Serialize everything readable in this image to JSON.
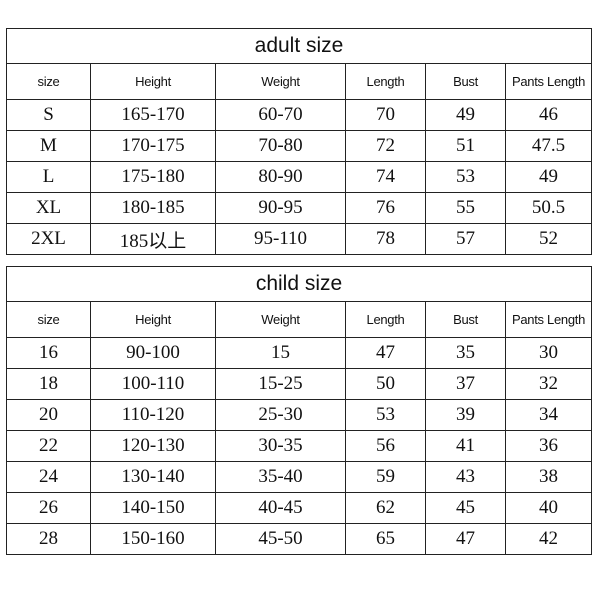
{
  "adult": {
    "title": "adult size",
    "headers": [
      "size",
      "Height",
      "Weight",
      "Length",
      "Bust",
      "Pants Length"
    ],
    "rows": [
      [
        "S",
        "165-170",
        "60-70",
        "70",
        "49",
        "46"
      ],
      [
        "M",
        "170-175",
        "70-80",
        "72",
        "51",
        "47.5"
      ],
      [
        "L",
        "175-180",
        "80-90",
        "74",
        "53",
        "49"
      ],
      [
        "XL",
        "180-185",
        "90-95",
        "76",
        "55",
        "50.5"
      ],
      [
        "2XL",
        "185以上",
        "95-110",
        "78",
        "57",
        "52"
      ]
    ]
  },
  "child": {
    "title": "child size",
    "headers": [
      "size",
      "Height",
      "Weight",
      "Length",
      "Bust",
      "Pants Length"
    ],
    "rows": [
      [
        "16",
        "90-100",
        "15",
        "47",
        "35",
        "30"
      ],
      [
        "18",
        "100-110",
        "15-25",
        "50",
        "37",
        "32"
      ],
      [
        "20",
        "110-120",
        "25-30",
        "53",
        "39",
        "34"
      ],
      [
        "22",
        "120-130",
        "30-35",
        "56",
        "41",
        "36"
      ],
      [
        "24",
        "130-140",
        "35-40",
        "59",
        "43",
        "38"
      ],
      [
        "26",
        "140-150",
        "40-45",
        "62",
        "45",
        "40"
      ],
      [
        "28",
        "150-160",
        "45-50",
        "65",
        "47",
        "42"
      ]
    ]
  }
}
